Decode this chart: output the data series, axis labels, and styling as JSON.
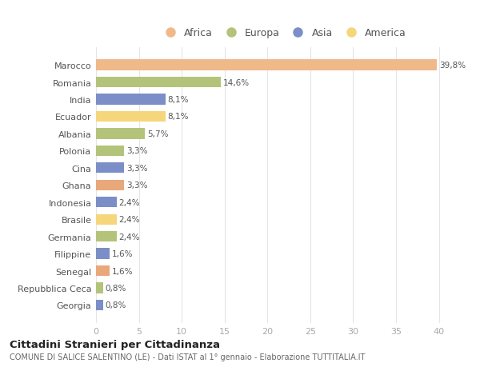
{
  "countries": [
    "Georgia",
    "Repubblica Ceca",
    "Senegal",
    "Filippine",
    "Germania",
    "Brasile",
    "Indonesia",
    "Ghana",
    "Cina",
    "Polonia",
    "Albania",
    "Ecuador",
    "India",
    "Romania",
    "Marocco"
  ],
  "values": [
    0.8,
    0.8,
    1.6,
    1.6,
    2.4,
    2.4,
    2.4,
    3.3,
    3.3,
    3.3,
    5.7,
    8.1,
    8.1,
    14.6,
    39.8
  ],
  "labels": [
    "0,8%",
    "0,8%",
    "1,6%",
    "1,6%",
    "2,4%",
    "2,4%",
    "2,4%",
    "3,3%",
    "3,3%",
    "3,3%",
    "5,7%",
    "8,1%",
    "8,1%",
    "14,6%",
    "39,8%"
  ],
  "colors": [
    "#7b8ec8",
    "#b3c47a",
    "#e8a87a",
    "#7b8ec8",
    "#b3c47a",
    "#f5d67a",
    "#7b8ec8",
    "#e8a87a",
    "#7b8ec8",
    "#b3c47a",
    "#b3c47a",
    "#f5d67a",
    "#7b8ec8",
    "#b3c47a",
    "#f0b98a"
  ],
  "legend_labels": [
    "Africa",
    "Europa",
    "Asia",
    "America"
  ],
  "legend_colors": [
    "#f0b98a",
    "#b3c47a",
    "#7b8ec8",
    "#f5d67a"
  ],
  "title1": "Cittadini Stranieri per Cittadinanza",
  "title2": "COMUNE DI SALICE SALENTINO (LE) - Dati ISTAT al 1° gennaio - Elaborazione TUTTITALIA.IT",
  "xlim": [
    0,
    42
  ],
  "xticks": [
    0,
    5,
    10,
    15,
    20,
    25,
    30,
    35,
    40
  ],
  "background_color": "#ffffff",
  "grid_color": "#e5e5e5"
}
